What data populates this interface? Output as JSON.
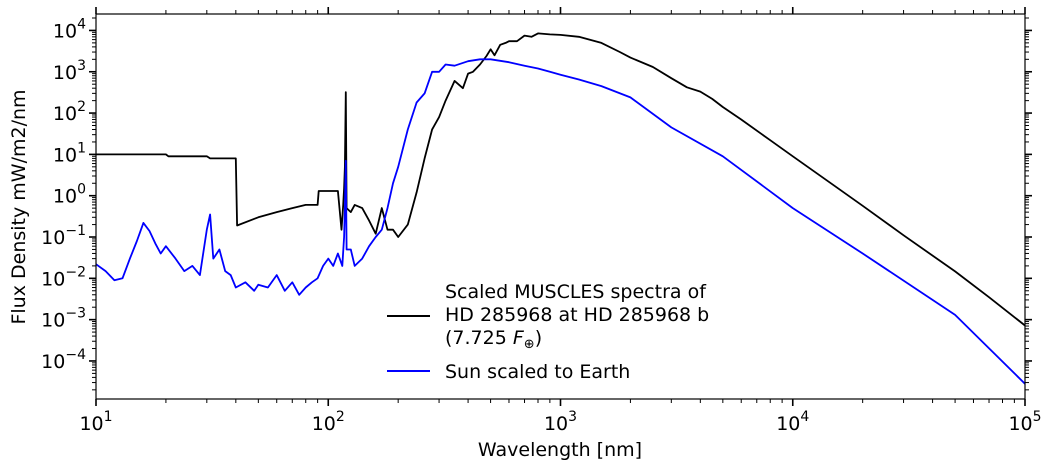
{
  "chart_data": {
    "type": "line",
    "title": "",
    "xlabel": "Wavelength [nm]",
    "ylabel": "Flux Density mW/m2/nm",
    "xscale": "log",
    "yscale": "log",
    "xlim": [
      10,
      100000
    ],
    "ylim": [
      1.2e-05,
      25000
    ],
    "grid": false,
    "legend_position": "lower-center",
    "x_tick_labels": [
      "10",
      "10",
      "10",
      "10",
      "10"
    ],
    "x_tick_exponents": [
      "1",
      "2",
      "3",
      "4",
      "5"
    ],
    "x_tick_values": [
      10,
      100,
      1000,
      10000,
      100000
    ],
    "y_tick_labels": [
      "10",
      "10",
      "10",
      "10",
      "10",
      "10",
      "10",
      "10",
      "10"
    ],
    "y_tick_exponents": [
      "−4",
      "−3",
      "−2",
      "−1",
      "0",
      "1",
      "2",
      "3",
      "4"
    ],
    "y_tick_values": [
      0.0001,
      0.001,
      0.01,
      0.1,
      1,
      10,
      100,
      1000,
      10000
    ],
    "series": [
      {
        "name": "Scaled MUSCLES spectra of HD 285968 at HD 285968 b (7.725 F⊕)",
        "legend_lines": [
          "Scaled MUSCLES spectra of",
          "HD 285968 at HD 285968 b",
          "(7.725 ",
          "F",
          "⊕",
          ")"
        ],
        "color": "#000000",
        "x": [
          10,
          20,
          20.5,
          30,
          31,
          40,
          40.5,
          50,
          60,
          70,
          80,
          90,
          91,
          100,
          110,
          114,
          116,
          117,
          118,
          119,
          120,
          125,
          130,
          140,
          150,
          160,
          170,
          180,
          190,
          200,
          220,
          240,
          260,
          280,
          300,
          320,
          350,
          380,
          400,
          420,
          450,
          480,
          500,
          520,
          550,
          580,
          600,
          650,
          700,
          750,
          800,
          900,
          1000,
          1200,
          1500,
          1800,
          2000,
          2500,
          3000,
          3500,
          4000,
          4500,
          5000,
          6000,
          8000,
          10000,
          15000,
          20000,
          30000,
          50000,
          70000,
          100000
        ],
        "y": [
          10,
          10,
          9,
          9,
          8,
          8,
          0.19,
          0.3,
          0.4,
          0.5,
          0.6,
          0.6,
          1.3,
          1.3,
          1.3,
          0.15,
          0.6,
          1.5,
          5,
          320,
          0.5,
          0.4,
          0.6,
          0.5,
          0.25,
          0.12,
          0.5,
          0.15,
          0.15,
          0.1,
          0.2,
          1.2,
          8,
          40,
          80,
          200,
          600,
          400,
          900,
          1000,
          1500,
          2400,
          3500,
          2500,
          4500,
          5000,
          5500,
          5500,
          7500,
          7000,
          8500,
          8000,
          7800,
          7000,
          5000,
          3000,
          2200,
          1300,
          700,
          420,
          330,
          220,
          140,
          70,
          22,
          9,
          1.8,
          0.57,
          0.11,
          0.0147,
          0.0035,
          0.00072
        ]
      },
      {
        "name": "Sun scaled to Earth",
        "legend_lines": [
          "Sun scaled to Earth"
        ],
        "color": "#0000ff",
        "x": [
          10,
          11,
          12,
          13,
          14,
          15,
          16,
          17,
          18,
          19,
          20,
          22,
          24,
          26,
          28,
          30,
          31,
          32,
          34,
          36,
          38,
          40,
          44,
          48,
          50,
          55,
          60,
          65,
          70,
          75,
          80,
          85,
          90,
          95,
          100,
          105,
          110,
          115,
          117,
          118,
          119,
          120,
          125,
          130,
          140,
          150,
          160,
          170,
          180,
          190,
          200,
          220,
          240,
          260,
          280,
          300,
          320,
          350,
          400,
          450,
          500,
          600,
          700,
          800,
          900,
          1000,
          1200,
          1500,
          2000,
          3000,
          5000,
          10000,
          20000,
          50000,
          100000
        ],
        "y": [
          0.022,
          0.015,
          0.009,
          0.01,
          0.03,
          0.08,
          0.22,
          0.14,
          0.07,
          0.04,
          0.06,
          0.03,
          0.015,
          0.02,
          0.012,
          0.15,
          0.35,
          0.03,
          0.05,
          0.015,
          0.012,
          0.006,
          0.008,
          0.005,
          0.007,
          0.006,
          0.012,
          0.005,
          0.008,
          0.004,
          0.006,
          0.008,
          0.01,
          0.02,
          0.03,
          0.02,
          0.04,
          0.02,
          0.1,
          0.5,
          7,
          0.05,
          0.05,
          0.02,
          0.03,
          0.06,
          0.1,
          0.15,
          0.5,
          2,
          5,
          40,
          180,
          300,
          1000,
          1000,
          1500,
          1400,
          1800,
          2000,
          2000,
          1700,
          1400,
          1200,
          1000,
          850,
          650,
          450,
          240,
          45,
          9,
          0.5,
          0.04,
          0.0013,
          2.8e-05
        ]
      }
    ]
  }
}
